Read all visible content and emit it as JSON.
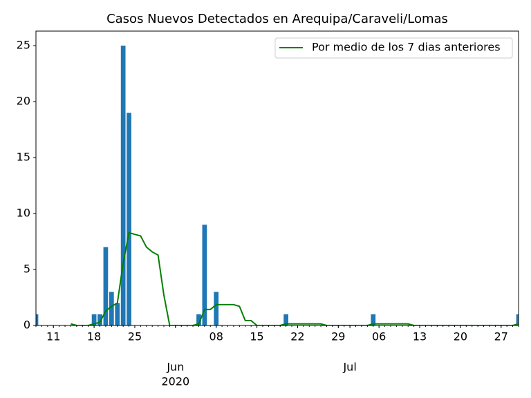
{
  "chart_data": {
    "type": "bar",
    "title": "Casos Nuevos Detectados en Arequipa/Caraveli/Lomas",
    "x": [
      "2020-05-08",
      "2020-05-09",
      "2020-05-10",
      "2020-05-11",
      "2020-05-12",
      "2020-05-13",
      "2020-05-14",
      "2020-05-15",
      "2020-05-16",
      "2020-05-17",
      "2020-05-18",
      "2020-05-19",
      "2020-05-20",
      "2020-05-21",
      "2020-05-22",
      "2020-05-23",
      "2020-05-24",
      "2020-05-25",
      "2020-05-26",
      "2020-05-27",
      "2020-05-28",
      "2020-05-29",
      "2020-05-30",
      "2020-05-31",
      "2020-06-01",
      "2020-06-02",
      "2020-06-03",
      "2020-06-04",
      "2020-06-05",
      "2020-06-06",
      "2020-06-07",
      "2020-06-08",
      "2020-06-09",
      "2020-06-10",
      "2020-06-11",
      "2020-06-12",
      "2020-06-13",
      "2020-06-14",
      "2020-06-15",
      "2020-06-16",
      "2020-06-17",
      "2020-06-18",
      "2020-06-19",
      "2020-06-20",
      "2020-06-21",
      "2020-06-22",
      "2020-06-23",
      "2020-06-24",
      "2020-06-25",
      "2020-06-26",
      "2020-06-27",
      "2020-06-28",
      "2020-06-29",
      "2020-06-30",
      "2020-07-01",
      "2020-07-02",
      "2020-07-03",
      "2020-07-04",
      "2020-07-05",
      "2020-07-06",
      "2020-07-07",
      "2020-07-08",
      "2020-07-09",
      "2020-07-10",
      "2020-07-11",
      "2020-07-12",
      "2020-07-13",
      "2020-07-14",
      "2020-07-15",
      "2020-07-16",
      "2020-07-17",
      "2020-07-18",
      "2020-07-19",
      "2020-07-20",
      "2020-07-21",
      "2020-07-22",
      "2020-07-23",
      "2020-07-24",
      "2020-07-25",
      "2020-07-26",
      "2020-07-27",
      "2020-07-28",
      "2020-07-29",
      "2020-07-30"
    ],
    "values": [
      1,
      0,
      0,
      0,
      0,
      0,
      0,
      0,
      0,
      0,
      1,
      1,
      7,
      3,
      2,
      25,
      19,
      0,
      0,
      0,
      0,
      0,
      0,
      0,
      0,
      0,
      0,
      0,
      1,
      9,
      0,
      3,
      0,
      0,
      0,
      0,
      0,
      0,
      0,
      0,
      0,
      0,
      0,
      1,
      0,
      0,
      0,
      0,
      0,
      0,
      0,
      0,
      0,
      0,
      0,
      0,
      0,
      0,
      1,
      0,
      0,
      0,
      0,
      0,
      0,
      0,
      0,
      0,
      0,
      0,
      0,
      0,
      0,
      0,
      0,
      0,
      0,
      0,
      0,
      0,
      0,
      0,
      0,
      1
    ],
    "color": "#1f77b4",
    "line": {
      "name": "Por medio de los 7 dias anteriores",
      "color": "#008000",
      "values": [
        null,
        null,
        null,
        null,
        null,
        null,
        0.14,
        0,
        0,
        0,
        0.14,
        0.29,
        1.29,
        1.71,
        2.0,
        5.57,
        8.29,
        8.14,
        8.0,
        7.0,
        6.57,
        6.29,
        2.71,
        0,
        0,
        0,
        0,
        0,
        0.14,
        1.43,
        1.43,
        1.86,
        1.86,
        1.86,
        1.86,
        1.71,
        0.43,
        0.43,
        0,
        0,
        0,
        0,
        0,
        0.14,
        0.14,
        0.14,
        0.14,
        0.14,
        0.14,
        0.14,
        0,
        0,
        0,
        0,
        0,
        0,
        0,
        0,
        0.14,
        0.14,
        0.14,
        0.14,
        0.14,
        0.14,
        0.14,
        0,
        0,
        0,
        0,
        0,
        0,
        0,
        0,
        0,
        0,
        0,
        0,
        0,
        0,
        0,
        0,
        0,
        0,
        0.14
      ]
    },
    "xlim": [
      "2020-05-08",
      "2020-07-30"
    ],
    "xticks": [
      {
        "value": "2020-05-11",
        "label": "11"
      },
      {
        "value": "2020-05-18",
        "label": "18"
      },
      {
        "value": "2020-05-25",
        "label": "25"
      },
      {
        "value": "2020-06-08",
        "label": "08"
      },
      {
        "value": "2020-06-15",
        "label": "15"
      },
      {
        "value": "2020-06-22",
        "label": "22"
      },
      {
        "value": "2020-06-29",
        "label": "29"
      },
      {
        "value": "2020-07-06",
        "label": "06"
      },
      {
        "value": "2020-07-13",
        "label": "13"
      },
      {
        "value": "2020-07-20",
        "label": "20"
      },
      {
        "value": "2020-07-27",
        "label": "27"
      }
    ],
    "month_ticks": [
      {
        "value": "2020-06-01",
        "label": "Jun",
        "year": "2020"
      },
      {
        "value": "2020-07-01",
        "label": "Jul"
      }
    ],
    "ylim": [
      0,
      26.3
    ],
    "yticks": [
      0,
      5,
      10,
      15,
      20,
      25
    ],
    "legend": "upper right"
  }
}
